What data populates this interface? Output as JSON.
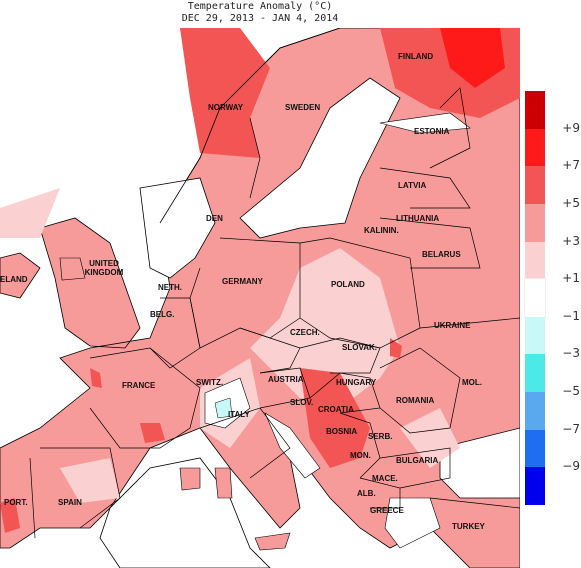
{
  "title": "Temperature Anomaly (°C)",
  "date_range": "DEC 29, 2013 - JAN  4, 2014",
  "legend": {
    "colors": [
      "#cc0000",
      "#ff1a1a",
      "#f35555",
      "#f79a9a",
      "#fbd0d0",
      "#ffffff",
      "#c8f8f8",
      "#4de8e8",
      "#5aa8f0",
      "#1e6ef0",
      "#0000ee"
    ],
    "labels": [
      "+9",
      "+7",
      "+5",
      "+3",
      "+1",
      "−1",
      "−3",
      "−5",
      "−7",
      "−9"
    ]
  },
  "countries": [
    {
      "name": "FINLAND",
      "key": "finland"
    },
    {
      "name": "NORWAY",
      "key": "norway"
    },
    {
      "name": "SWEDEN",
      "key": "sweden"
    },
    {
      "name": "ESTONIA",
      "key": "estonia"
    },
    {
      "name": "LATVIA",
      "key": "latvia"
    },
    {
      "name": "LITHUANIA",
      "key": "lithuania"
    },
    {
      "name": "KALININ.",
      "key": "kalinin"
    },
    {
      "name": "BELARUS",
      "key": "belarus"
    },
    {
      "name": "DEN",
      "key": "den"
    },
    {
      "name": "UNITED KINGDOM",
      "key": "uk"
    },
    {
      "name": "ELAND",
      "key": "eland"
    },
    {
      "name": "NETH.",
      "key": "neth"
    },
    {
      "name": "GERMANY",
      "key": "germany"
    },
    {
      "name": "POLAND",
      "key": "poland"
    },
    {
      "name": "BELG.",
      "key": "belg"
    },
    {
      "name": "CZECH.",
      "key": "czech"
    },
    {
      "name": "UKRAINE",
      "key": "ukraine"
    },
    {
      "name": "SLOVAK.",
      "key": "slovak"
    },
    {
      "name": "FRANCE",
      "key": "france"
    },
    {
      "name": "SWITZ.",
      "key": "switz"
    },
    {
      "name": "AUSTRIA",
      "key": "austria"
    },
    {
      "name": "HUNGARY",
      "key": "hungary"
    },
    {
      "name": "MOL.",
      "key": "mol"
    },
    {
      "name": "ITALY",
      "key": "italy"
    },
    {
      "name": "SLOV.",
      "key": "slov"
    },
    {
      "name": "CROATIA",
      "key": "croatia"
    },
    {
      "name": "ROMANIA",
      "key": "romania"
    },
    {
      "name": "BOSNIA",
      "key": "bosnia"
    },
    {
      "name": "SERB.",
      "key": "serb"
    },
    {
      "name": "MON.",
      "key": "mon"
    },
    {
      "name": "BULGARIA",
      "key": "bulgaria"
    },
    {
      "name": "MACE.",
      "key": "mace"
    },
    {
      "name": "ALB.",
      "key": "alb"
    },
    {
      "name": "GREECE",
      "key": "greece"
    },
    {
      "name": "PORT.",
      "key": "port"
    },
    {
      "name": "SPAIN",
      "key": "spain"
    },
    {
      "name": "TURKEY",
      "key": "turkey"
    }
  ]
}
